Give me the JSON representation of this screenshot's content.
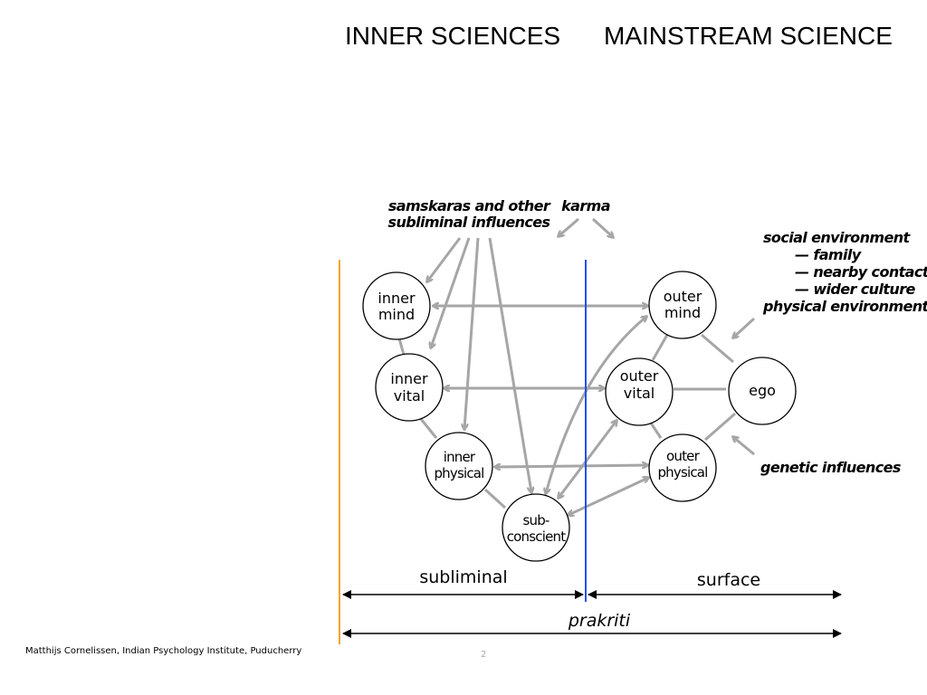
{
  "titles": {
    "left": "INNER SCIENCES",
    "right": "MAINSTREAM SCIENCE"
  },
  "influences": {
    "samskaras": [
      "samskaras and other",
      "subliminal influences"
    ],
    "karma": "karma",
    "environment": [
      "social environment",
      "— family",
      "— nearby contacts",
      "— wider culture",
      "physical environment"
    ],
    "genetic": "genetic influences"
  },
  "nodes": {
    "inner_mind": [
      "inner",
      "mind"
    ],
    "inner_vital": [
      "inner",
      "vital"
    ],
    "inner_physical": [
      "inner",
      "physical"
    ],
    "subconscient": [
      "sub-",
      "conscient"
    ],
    "outer_mind": [
      "outer",
      "mind"
    ],
    "outer_vital": [
      "outer",
      "vital"
    ],
    "outer_physical": [
      "outer",
      "physical"
    ],
    "ego": [
      "ego"
    ]
  },
  "axes": {
    "subliminal": "subliminal",
    "surface": "surface",
    "prakriti": "prakriti"
  },
  "colors": {
    "arrow": "#a6a6a6",
    "left_boundary": "#f5a623",
    "center_boundary": "#2050f0"
  },
  "footer": {
    "credit": "Matthijs Cornelissen, Indian Psychology Institute, Puducherry",
    "page": "2"
  }
}
